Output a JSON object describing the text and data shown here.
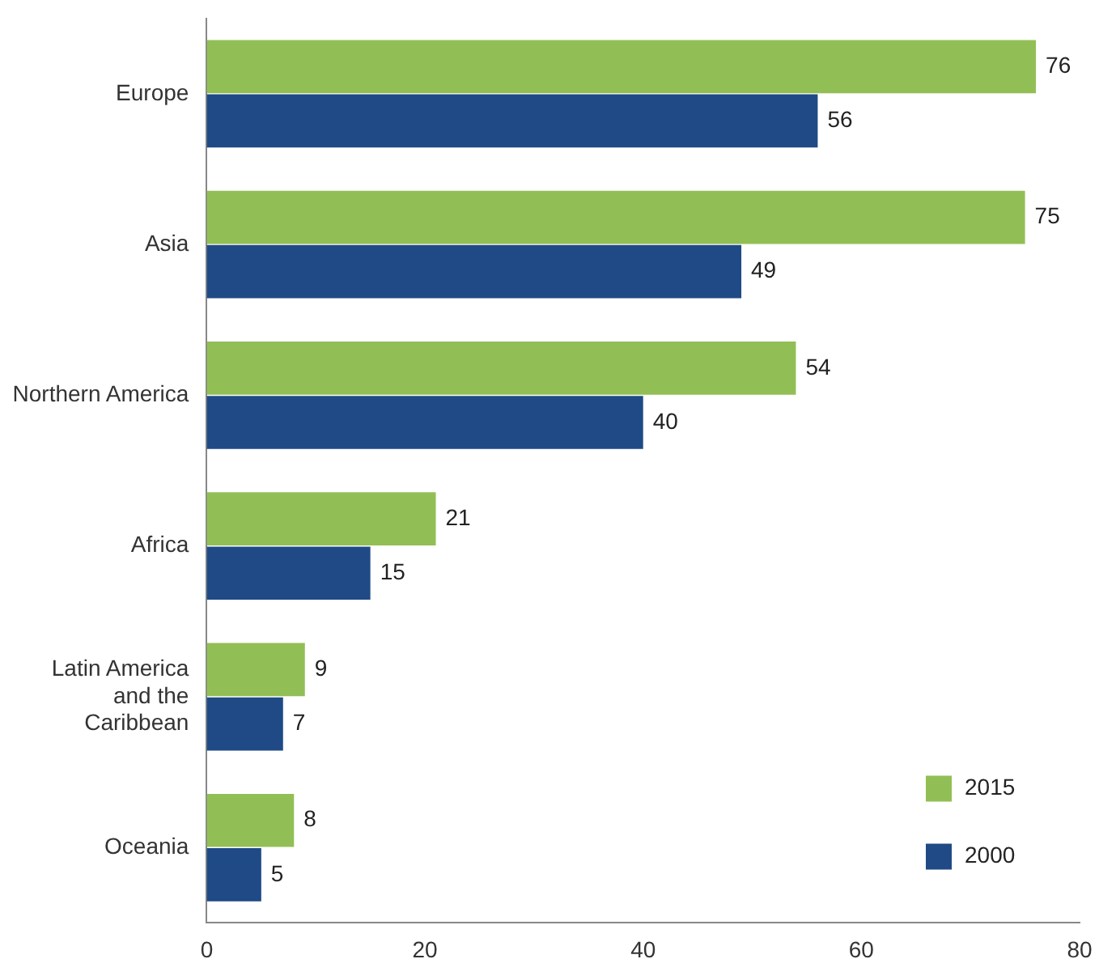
{
  "chart_data": {
    "type": "bar",
    "orientation": "horizontal",
    "categories": [
      "Europe",
      "Asia",
      "Northern America",
      "Africa",
      "Latin America and the Caribbean",
      "Oceania"
    ],
    "series": [
      {
        "name": "2015",
        "color": "#92bf55",
        "values": [
          76,
          75,
          54,
          21,
          9,
          8
        ]
      },
      {
        "name": "2000",
        "color": "#1f4a86",
        "values": [
          56,
          49,
          40,
          15,
          7,
          5
        ]
      }
    ],
    "xlim": [
      0,
      80
    ],
    "xticks": [
      0,
      20,
      40,
      60,
      80
    ],
    "grid": false,
    "legend": "bottom right",
    "data_labels": true
  }
}
